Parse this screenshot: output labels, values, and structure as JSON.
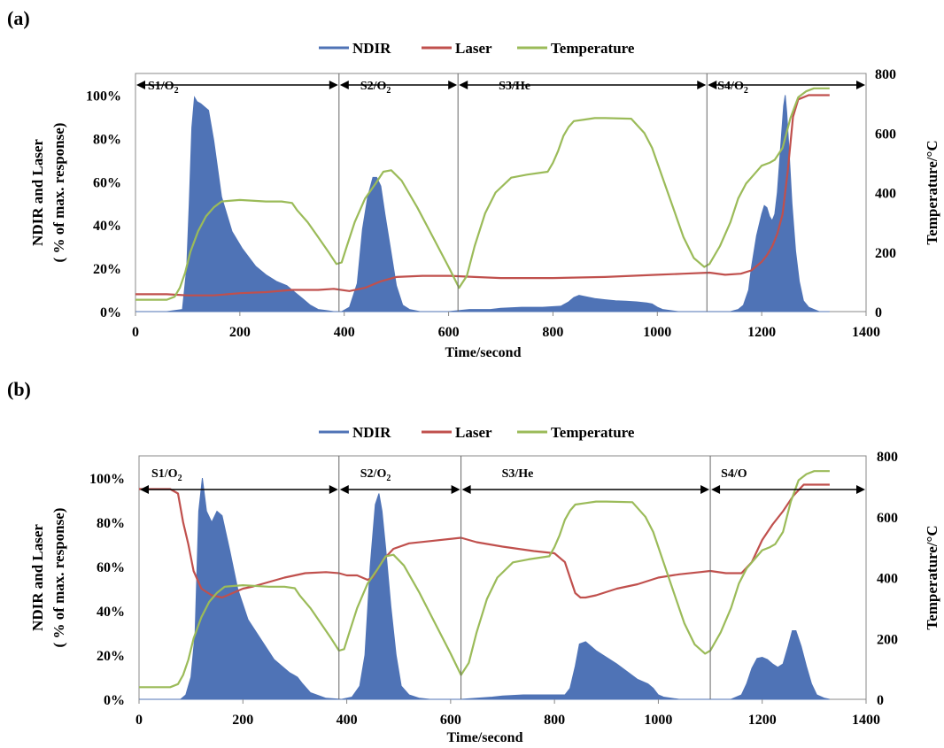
{
  "chart_data": [
    {
      "type": "area+line",
      "panel_label": "(a)",
      "xlabel": "Time/second",
      "ylabel": "NDIR and Laser",
      "ylabel2": "( % of max. response)",
      "y2label": "Temperature/°C",
      "xlim": [
        0,
        1400
      ],
      "ylim": [
        0,
        1.1
      ],
      "y2lim": [
        0,
        800
      ],
      "xticks": [
        "0",
        "200",
        "400",
        "600",
        "800",
        "1000",
        "1200",
        "1400"
      ],
      "yticks": [
        "0%",
        "20%",
        "40%",
        "60%",
        "80%",
        "100%"
      ],
      "y2ticks": [
        "0",
        "200",
        "400",
        "600",
        "800"
      ],
      "legend": [
        "NDIR",
        "Laser",
        "Temperature"
      ],
      "legend_position": "top",
      "colors": {
        "NDIR": "#4f73b6",
        "Laser": "#c0504d",
        "Temperature": "#9bbb59"
      },
      "segment_dividers": [
        390,
        618,
        1095
      ],
      "segments": [
        {
          "label": "S1/O",
          "sub": "2"
        },
        {
          "label": "S2/O",
          "sub": "2"
        },
        {
          "label": "S3/He",
          "sub": ""
        },
        {
          "label": "S4/O",
          "sub": "2"
        }
      ],
      "series": [
        {
          "name": "NDIR",
          "axis": "left",
          "fill": true,
          "x": [
            0,
            60,
            90,
            98,
            103,
            108,
            113,
            118,
            125,
            140,
            150,
            165,
            185,
            205,
            230,
            250,
            270,
            290,
            305,
            320,
            335,
            350,
            365,
            380,
            395,
            410,
            425,
            435,
            445,
            455,
            462,
            470,
            478,
            488,
            500,
            512,
            525,
            545,
            560,
            600,
            640,
            680,
            700,
            740,
            780,
            815,
            830,
            840,
            850,
            860,
            880,
            900,
            920,
            940,
            960,
            980,
            990,
            1000,
            1010,
            1040,
            1080,
            1120,
            1140,
            1155,
            1165,
            1175,
            1180,
            1190,
            1200,
            1205,
            1210,
            1215,
            1220,
            1225,
            1230,
            1235,
            1242,
            1245,
            1248,
            1252,
            1258,
            1265,
            1272,
            1280,
            1290,
            1300,
            1310,
            1330
          ],
          "y": [
            0,
            0,
            0.01,
            0.2,
            0.5,
            0.85,
            0.99,
            0.97,
            0.96,
            0.93,
            0.79,
            0.53,
            0.37,
            0.29,
            0.21,
            0.17,
            0.14,
            0.12,
            0.09,
            0.06,
            0.03,
            0.01,
            0.005,
            0,
            0,
            0.02,
            0.13,
            0.38,
            0.53,
            0.62,
            0.62,
            0.58,
            0.45,
            0.3,
            0.12,
            0.03,
            0.01,
            0,
            0,
            0,
            0.01,
            0.01,
            0.015,
            0.02,
            0.02,
            0.025,
            0.045,
            0.065,
            0.075,
            0.07,
            0.06,
            0.055,
            0.05,
            0.048,
            0.045,
            0.04,
            0.035,
            0.02,
            0.01,
            0,
            0,
            0,
            0,
            0.01,
            0.03,
            0.1,
            0.2,
            0.35,
            0.45,
            0.49,
            0.48,
            0.44,
            0.42,
            0.45,
            0.55,
            0.72,
            0.95,
            1.0,
            0.92,
            0.76,
            0.5,
            0.28,
            0.14,
            0.05,
            0.02,
            0.01,
            0,
            0
          ]
        },
        {
          "name": "Laser",
          "axis": "left",
          "fill": false,
          "x": [
            0,
            60,
            100,
            150,
            200,
            250,
            300,
            350,
            380,
            410,
            440,
            470,
            500,
            550,
            600,
            650,
            700,
            800,
            900,
            1000,
            1050,
            1100,
            1130,
            1160,
            1180,
            1190,
            1200,
            1210,
            1220,
            1230,
            1240,
            1250,
            1260,
            1270,
            1290,
            1330
          ],
          "y": [
            0.08,
            0.08,
            0.075,
            0.075,
            0.085,
            0.09,
            0.1,
            0.1,
            0.105,
            0.095,
            0.11,
            0.14,
            0.16,
            0.165,
            0.165,
            0.16,
            0.155,
            0.155,
            0.16,
            0.17,
            0.175,
            0.18,
            0.17,
            0.175,
            0.19,
            0.21,
            0.23,
            0.26,
            0.3,
            0.36,
            0.45,
            0.65,
            0.9,
            0.98,
            1.0,
            1.0
          ]
        },
        {
          "name": "Temperature",
          "axis": "right",
          "fill": false,
          "x": [
            0,
            60,
            75,
            85,
            95,
            105,
            120,
            135,
            150,
            165,
            200,
            250,
            280,
            300,
            310,
            330,
            350,
            370,
            385,
            395,
            405,
            420,
            440,
            460,
            475,
            490,
            510,
            540,
            570,
            600,
            620,
            635,
            650,
            670,
            690,
            720,
            750,
            790,
            800,
            810,
            820,
            830,
            840,
            860,
            880,
            900,
            950,
            975,
            990,
            1010,
            1030,
            1050,
            1070,
            1090,
            1100,
            1120,
            1140,
            1155,
            1170,
            1185,
            1200,
            1215,
            1225,
            1240,
            1255,
            1270,
            1285,
            1300,
            1315,
            1330
          ],
          "y": [
            40,
            40,
            50,
            80,
            130,
            200,
            270,
            320,
            350,
            370,
            375,
            370,
            370,
            365,
            340,
            300,
            250,
            200,
            160,
            165,
            220,
            300,
            380,
            430,
            470,
            475,
            440,
            350,
            250,
            150,
            80,
            120,
            220,
            330,
            400,
            450,
            460,
            470,
            500,
            540,
            590,
            620,
            640,
            645,
            650,
            650,
            648,
            600,
            550,
            450,
            350,
            250,
            180,
            150,
            160,
            220,
            300,
            380,
            430,
            460,
            490,
            500,
            510,
            550,
            650,
            720,
            740,
            750,
            750,
            750
          ]
        }
      ]
    },
    {
      "type": "area+line",
      "panel_label": "(b)",
      "xlabel": "Time/second",
      "ylabel": "NDIR and Laser",
      "ylabel2": "( % of max. response)",
      "y2label": "Temperature/°C",
      "xlim": [
        0,
        1400
      ],
      "ylim": [
        0,
        1.1
      ],
      "y2lim": [
        0,
        800
      ],
      "xticks": [
        "0",
        "200",
        "400",
        "600",
        "800",
        "1000",
        "1200",
        "1400"
      ],
      "yticks": [
        "0%",
        "20%",
        "40%",
        "60%",
        "80%",
        "100%"
      ],
      "y2ticks": [
        "0",
        "200",
        "400",
        "600",
        "800"
      ],
      "legend": [
        "NDIR",
        "Laser",
        "Temperature"
      ],
      "legend_position": "top",
      "colors": {
        "NDIR": "#4f73b6",
        "Laser": "#c0504d",
        "Temperature": "#9bbb59"
      },
      "segment_dividers": [
        385,
        620,
        1100
      ],
      "segments": [
        {
          "label": "S1/O",
          "sub": "2"
        },
        {
          "label": "S2/O",
          "sub": "2"
        },
        {
          "label": "S3/He",
          "sub": ""
        },
        {
          "label": "S4/O",
          "sub": ""
        }
      ],
      "series": [
        {
          "name": "NDIR",
          "axis": "left",
          "fill": true,
          "x": [
            0,
            60,
            80,
            90,
            100,
            108,
            115,
            122,
            130,
            140,
            150,
            160,
            175,
            190,
            210,
            235,
            260,
            280,
            290,
            298,
            305,
            315,
            330,
            360,
            390,
            410,
            425,
            435,
            445,
            455,
            462,
            468,
            475,
            485,
            495,
            505,
            520,
            540,
            560,
            620,
            680,
            700,
            740,
            780,
            820,
            830,
            840,
            848,
            860,
            880,
            920,
            960,
            980,
            990,
            1000,
            1010,
            1040,
            1100,
            1140,
            1160,
            1170,
            1180,
            1190,
            1200,
            1210,
            1220,
            1230,
            1240,
            1250,
            1258,
            1265,
            1275,
            1285,
            1295,
            1305,
            1320,
            1330
          ],
          "y": [
            0,
            0,
            0,
            0.02,
            0.1,
            0.3,
            0.85,
            1.0,
            0.85,
            0.8,
            0.85,
            0.83,
            0.67,
            0.5,
            0.36,
            0.27,
            0.18,
            0.14,
            0.12,
            0.11,
            0.1,
            0.07,
            0.03,
            0.005,
            0,
            0.01,
            0.06,
            0.2,
            0.6,
            0.88,
            0.93,
            0.85,
            0.68,
            0.42,
            0.2,
            0.06,
            0.02,
            0.005,
            0,
            0,
            0.01,
            0.015,
            0.02,
            0.02,
            0.02,
            0.05,
            0.15,
            0.25,
            0.26,
            0.22,
            0.16,
            0.09,
            0.07,
            0.05,
            0.02,
            0.01,
            0,
            0,
            0,
            0.02,
            0.07,
            0.14,
            0.185,
            0.19,
            0.18,
            0.16,
            0.145,
            0.16,
            0.24,
            0.31,
            0.31,
            0.24,
            0.15,
            0.07,
            0.02,
            0.005,
            0
          ]
        },
        {
          "name": "Laser",
          "axis": "left",
          "fill": false,
          "x": [
            0,
            60,
            75,
            85,
            95,
            105,
            120,
            140,
            160,
            180,
            200,
            220,
            250,
            280,
            320,
            360,
            385,
            400,
            420,
            440,
            450,
            460,
            470,
            490,
            520,
            560,
            620,
            650,
            700,
            760,
            800,
            820,
            830,
            840,
            850,
            860,
            880,
            920,
            960,
            1000,
            1040,
            1080,
            1100,
            1130,
            1160,
            1180,
            1200,
            1220,
            1240,
            1260,
            1280,
            1300,
            1330
          ],
          "y": [
            0.95,
            0.95,
            0.93,
            0.8,
            0.7,
            0.58,
            0.5,
            0.47,
            0.46,
            0.48,
            0.5,
            0.51,
            0.53,
            0.55,
            0.57,
            0.575,
            0.57,
            0.56,
            0.56,
            0.54,
            0.55,
            0.59,
            0.63,
            0.68,
            0.705,
            0.715,
            0.73,
            0.71,
            0.69,
            0.67,
            0.66,
            0.62,
            0.55,
            0.48,
            0.46,
            0.46,
            0.47,
            0.5,
            0.52,
            0.55,
            0.565,
            0.575,
            0.58,
            0.57,
            0.57,
            0.62,
            0.72,
            0.79,
            0.85,
            0.92,
            0.97,
            0.97,
            0.97
          ]
        },
        {
          "name": "Temperature",
          "axis": "right",
          "fill": false,
          "x": [
            0,
            60,
            75,
            85,
            95,
            105,
            120,
            135,
            150,
            165,
            200,
            250,
            280,
            300,
            310,
            330,
            350,
            370,
            385,
            395,
            405,
            420,
            440,
            460,
            475,
            490,
            510,
            540,
            570,
            600,
            620,
            635,
            650,
            670,
            690,
            720,
            750,
            790,
            800,
            810,
            820,
            830,
            840,
            860,
            880,
            900,
            950,
            975,
            990,
            1010,
            1030,
            1050,
            1070,
            1090,
            1100,
            1120,
            1140,
            1155,
            1170,
            1185,
            1200,
            1215,
            1225,
            1240,
            1255,
            1270,
            1285,
            1300,
            1315,
            1330
          ],
          "y": [
            40,
            40,
            50,
            80,
            130,
            200,
            270,
            320,
            350,
            370,
            375,
            370,
            370,
            365,
            340,
            300,
            250,
            200,
            160,
            165,
            220,
            300,
            380,
            430,
            470,
            475,
            440,
            350,
            250,
            150,
            80,
            120,
            220,
            330,
            400,
            450,
            460,
            470,
            500,
            540,
            590,
            620,
            640,
            645,
            650,
            650,
            648,
            600,
            550,
            450,
            350,
            250,
            180,
            150,
            160,
            220,
            300,
            380,
            430,
            460,
            490,
            500,
            510,
            550,
            650,
            720,
            740,
            750,
            750,
            750
          ]
        }
      ]
    }
  ]
}
